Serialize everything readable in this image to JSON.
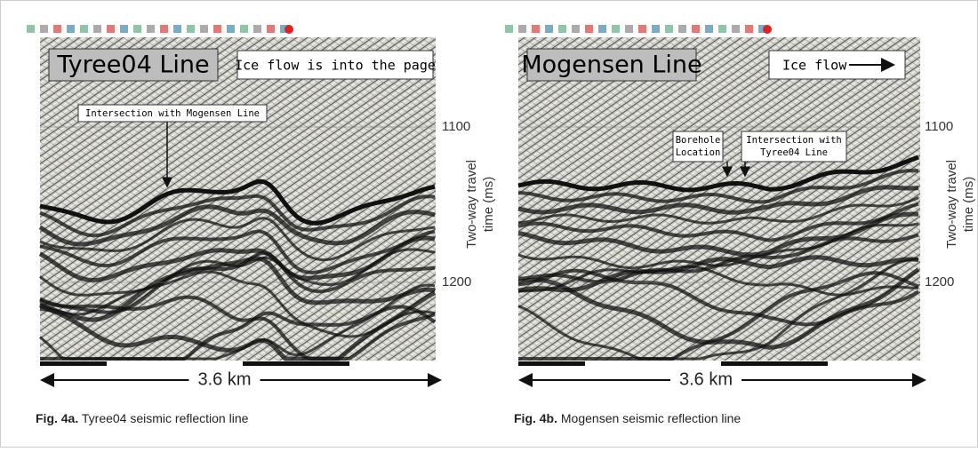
{
  "panels": [
    {
      "label": "Tyree04 Line",
      "note": "Ice flow is into the page",
      "annotations": [
        [
          "Intersection with Mogensen Line"
        ]
      ],
      "ticks": [
        "1100",
        "1200"
      ],
      "axis_label": [
        "Two-way travel",
        "time (ms)"
      ],
      "scale": "3.6 km",
      "caption": {
        "figure": "Fig. 4a.",
        "text": " Tyree04 seismic reflection line"
      }
    },
    {
      "label": "Mogensen Line",
      "note": "Ice flow",
      "annotations": [
        [
          "Borehole",
          "Location"
        ],
        [
          "Intersection with",
          "Tyree04 Line"
        ]
      ],
      "ticks": [
        "1100",
        "1200"
      ],
      "axis_label": [
        "Two-way travel",
        "time (ms)"
      ],
      "scale": "3.6 km",
      "caption": {
        "figure": "Fig. 4b.",
        "text": " Mogensen seismic reflection line"
      }
    }
  ]
}
